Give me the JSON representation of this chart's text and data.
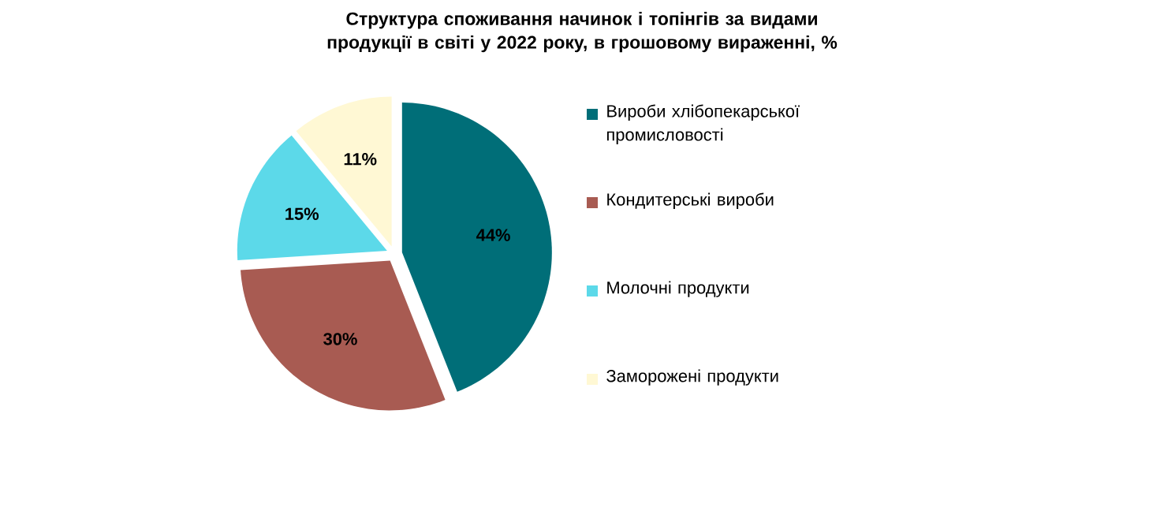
{
  "chart_data": {
    "type": "pie",
    "title": "Структура споживання начинок і топінгів за видами продукції в світі у 2022 року, в грошовому вираженні, %",
    "categories": [
      "Вироби хлібопекарської промисловості",
      "Кондитерські вироби",
      "Молочні продукти",
      "Заморожені продукти"
    ],
    "values": [
      44,
      30,
      15,
      11
    ],
    "colors": [
      "#006e78",
      "#a85b52",
      "#5cd9e9",
      "#fff8d4"
    ],
    "value_labels": [
      "44%",
      "30%",
      "15%",
      "11%"
    ],
    "legend": "right"
  }
}
